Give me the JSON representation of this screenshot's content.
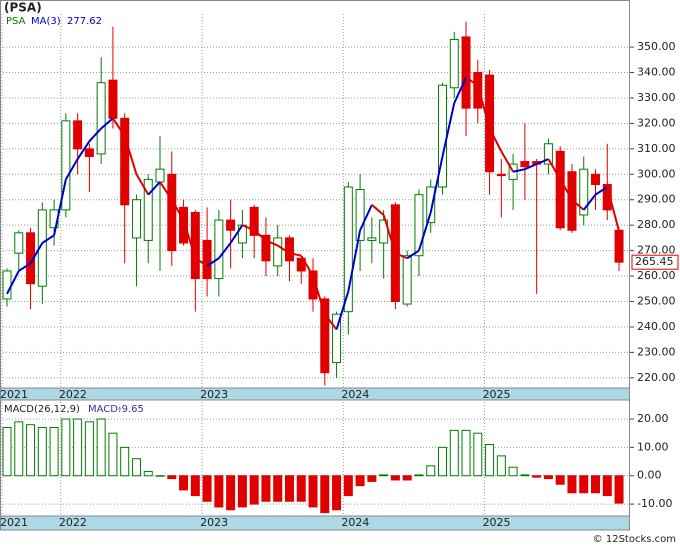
{
  "chart_data": {
    "type": "candlestick",
    "title": "(PSA)",
    "ticker": "PSA",
    "footer": "© 12Stocks.com",
    "categories": [
      "2021",
      null,
      null,
      null,
      null,
      "2022",
      null,
      null,
      null,
      null,
      null,
      null,
      null,
      null,
      null,
      null,
      null,
      "2023",
      null,
      null,
      null,
      null,
      null,
      null,
      null,
      null,
      null,
      null,
      null,
      "2024",
      null,
      null,
      null,
      null,
      null,
      null,
      null,
      null,
      null,
      null,
      null,
      "2025",
      null,
      null,
      null,
      null,
      null,
      null,
      null,
      null,
      null,
      null,
      null
    ],
    "open": [
      251,
      269,
      277,
      256,
      279,
      286,
      321,
      310,
      308,
      337,
      322,
      275,
      274,
      297,
      300,
      287,
      285,
      274,
      259,
      282,
      273,
      287,
      276,
      264,
      275,
      267,
      262,
      251,
      226,
      246,
      274,
      274,
      273,
      288,
      249,
      268,
      281,
      295,
      334,
      354,
      340,
      339,
      300,
      298,
      305,
      305,
      304,
      309,
      301,
      284,
      300,
      296,
      278
    ],
    "high": [
      263,
      278,
      279,
      289,
      290,
      324,
      324,
      312,
      346,
      358,
      324,
      292,
      300,
      315,
      309,
      290,
      286,
      287,
      286,
      290,
      286,
      288,
      283,
      280,
      276,
      267,
      267,
      252,
      246,
      297,
      300,
      283,
      286,
      289,
      270,
      294,
      298,
      336,
      356,
      360,
      345,
      341,
      306,
      308,
      320,
      306,
      314,
      311,
      304,
      307,
      302,
      312,
      279
    ],
    "low": [
      248,
      262,
      247,
      249,
      272,
      283,
      300,
      293,
      304,
      318,
      265,
      256,
      265,
      262,
      264,
      272,
      246,
      252,
      252,
      263,
      267,
      267,
      260,
      260,
      258,
      257,
      246,
      217,
      220,
      237,
      262,
      265,
      259,
      247,
      248,
      260,
      277,
      292,
      330,
      315,
      320,
      292,
      283,
      286,
      290,
      253,
      300,
      278,
      277,
      280,
      286,
      282,
      262
    ],
    "close": [
      262,
      277,
      257,
      286,
      286,
      321,
      310,
      307,
      336,
      322,
      288,
      290,
      298,
      302,
      270,
      273,
      259,
      259,
      282,
      278,
      280,
      276,
      266,
      275,
      266,
      262,
      251,
      222,
      245,
      295,
      294,
      275,
      282,
      250,
      268,
      292,
      295,
      335,
      353,
      326,
      326,
      301,
      299.5,
      304,
      303,
      304,
      312,
      279,
      278,
      302,
      296,
      286,
      265.45
    ],
    "up_color": "#008000",
    "down_color": "#e00000",
    "ylim": [
      216,
      363
    ],
    "yticks": [
      {
        "value": 220,
        "label": "220.00"
      },
      {
        "value": 230,
        "label": "230.00"
      },
      {
        "value": 240,
        "label": "240.00"
      },
      {
        "value": 250,
        "label": "250.00"
      },
      {
        "value": 260,
        "label": "260.00"
      },
      {
        "value": 270,
        "label": "270.00"
      },
      {
        "value": 280,
        "label": "280.00"
      },
      {
        "value": 290,
        "label": "290.00"
      },
      {
        "value": 300,
        "label": "300.00"
      },
      {
        "value": 310,
        "label": "310.00"
      },
      {
        "value": 320,
        "label": "320.00"
      },
      {
        "value": 330,
        "label": "330.00"
      },
      {
        "value": 340,
        "label": "340.00"
      },
      {
        "value": 350,
        "label": "350.00"
      }
    ],
    "grid": true,
    "ma": {
      "name": "MA(3)",
      "up_color": "#0000cc",
      "down_color": "#e00000",
      "values": [
        253,
        262,
        265,
        273,
        276,
        298,
        306,
        313,
        318,
        322,
        315,
        300,
        292,
        297,
        290,
        282,
        267,
        264,
        267,
        273,
        280,
        278,
        274,
        272,
        269,
        268,
        260,
        245,
        239,
        254,
        278,
        288,
        284,
        269,
        267,
        270,
        285,
        307,
        328,
        338,
        335,
        318,
        309,
        301,
        302,
        304,
        306,
        298,
        290,
        286,
        292,
        295,
        277.62
      ]
    },
    "macd": {
      "name": "MACD(26,12,9)",
      "label": "MACD:",
      "color": "#3333aa",
      "values": [
        17,
        19,
        18,
        17,
        17,
        20,
        20,
        19,
        20,
        15,
        10,
        6,
        1.5,
        0,
        -1,
        -5,
        -7,
        -9,
        -11,
        -12,
        -11,
        -10,
        -9,
        -9,
        -9,
        -9,
        -11,
        -13,
        -12,
        -7,
        -3.5,
        -2,
        0.3,
        -1.5,
        -1.5,
        0.3,
        3.5,
        10,
        16,
        16,
        15,
        11,
        7,
        3,
        0.3,
        -0.5,
        -1,
        -3,
        -6,
        -6,
        -6,
        -7,
        -9.65
      ],
      "ylim": [
        -14.2,
        26
      ],
      "yticks": [
        {
          "value": -10,
          "label": "-10.00"
        },
        {
          "value": 0,
          "label": "0.00"
        },
        {
          "value": 10,
          "label": "10.00"
        },
        {
          "value": 20,
          "label": "20.00"
        }
      ]
    }
  }
}
